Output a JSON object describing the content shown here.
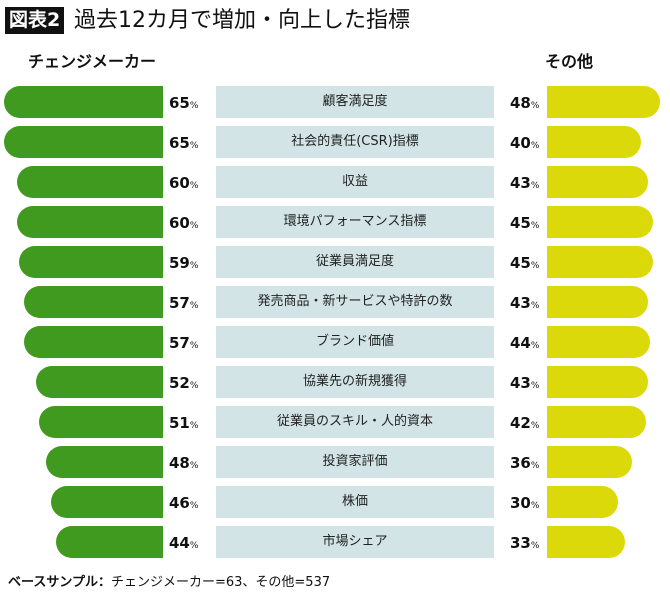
{
  "chart_data": {
    "type": "bar",
    "badge": "図表2",
    "title": "過去12カ月で増加・向上した指標",
    "categories": [
      "顧客満足度",
      "社会的責任(CSR)指標",
      "収益",
      "環境パフォーマンス指標",
      "従業員満足度",
      "発売商品・新サービスや特許の数",
      "ブランド価値",
      "協業先の新規獲得",
      "従業員のスキル・人的資本",
      "投資家評価",
      "株価",
      "市場シェア"
    ],
    "series": [
      {
        "name": "チェンジメーカー",
        "color": "#3f9a1f",
        "values": [
          65,
          65,
          60,
          60,
          59,
          57,
          57,
          52,
          51,
          48,
          46,
          44
        ]
      },
      {
        "name": "その他",
        "color": "#dcd90a",
        "values": [
          48,
          40,
          43,
          45,
          45,
          43,
          44,
          43,
          42,
          36,
          30,
          33
        ]
      }
    ],
    "unit": "%",
    "footnote_label": "ベースサンプル：",
    "footnote": "チェンジメーカー=63、その他=537"
  }
}
